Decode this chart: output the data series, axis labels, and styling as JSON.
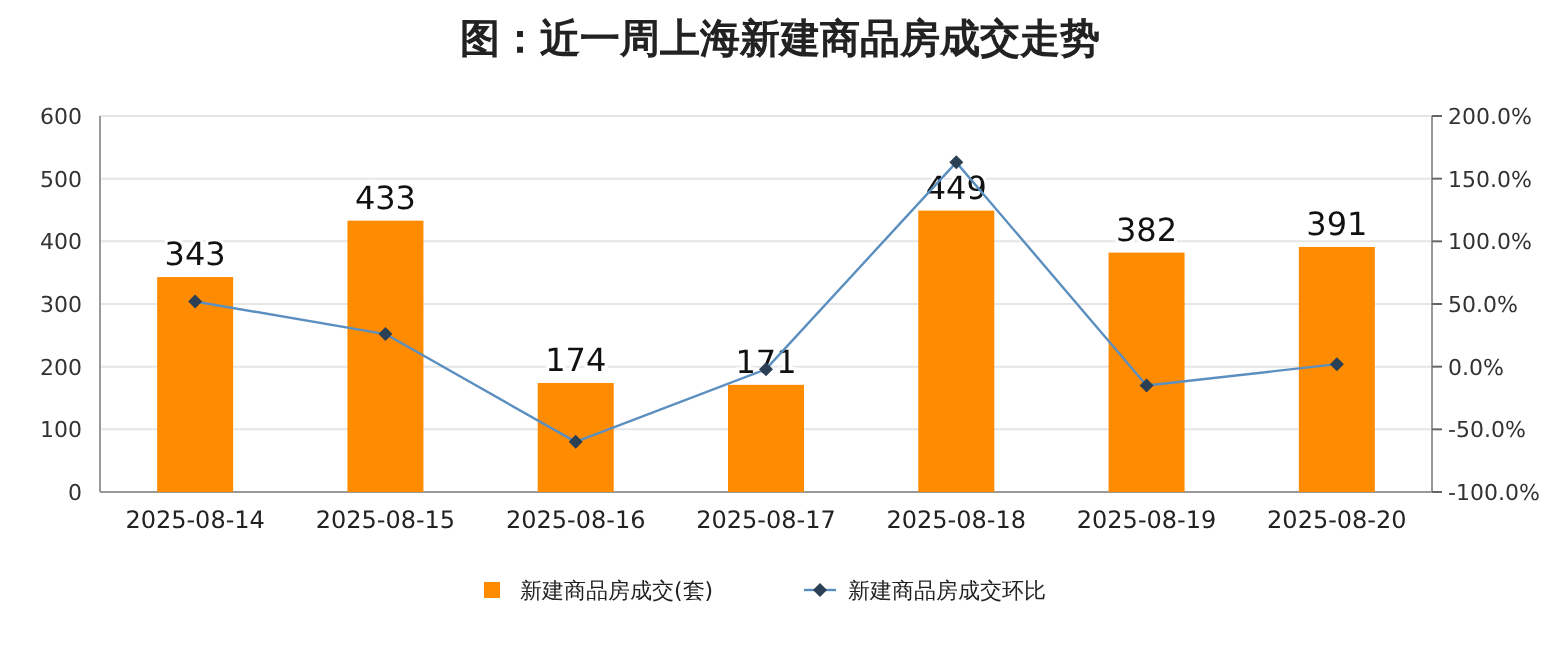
{
  "chart_data": {
    "type": "bar",
    "title": "图：近一周上海新建商品房成交走势",
    "categories": [
      "2025-08-14",
      "2025-08-15",
      "2025-08-16",
      "2025-08-17",
      "2025-08-18",
      "2025-08-19",
      "2025-08-20"
    ],
    "series": [
      {
        "name": "新建商品房成交(套)",
        "color": "#ff8c00",
        "values": [
          343,
          433,
          174,
          171,
          449,
          382,
          391
        ],
        "value_labels": [
          "343",
          "433",
          "174",
          "171",
          "449",
          "382",
          "391"
        ]
      },
      {
        "name": "新建商品房成交环比",
        "type": "line",
        "axis": "y2",
        "color": "#5b8fc0",
        "marker": "diamond",
        "values": [
          52,
          26,
          -60,
          -2,
          163,
          -15,
          2
        ]
      }
    ],
    "ylim": [
      0,
      600
    ],
    "yticks": [
      0,
      100,
      200,
      300,
      400,
      500,
      600
    ],
    "y2lim": [
      -100,
      200
    ],
    "y2ticks": [
      {
        "value": -100,
        "label": "-100.0%"
      },
      {
        "value": -50,
        "label": "-50.0%"
      },
      {
        "value": 0,
        "label": "0.0%"
      },
      {
        "value": 50,
        "label": "50.0%"
      },
      {
        "value": 100,
        "label": "100.0%"
      },
      {
        "value": 150,
        "label": "150.0%"
      },
      {
        "value": 200,
        "label": "200.0%"
      }
    ],
    "grid": "y",
    "legend": "bottom"
  }
}
